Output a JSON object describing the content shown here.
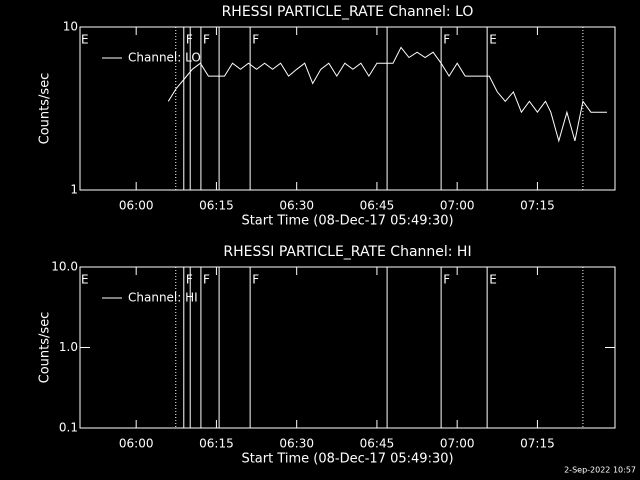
{
  "chart_data": [
    {
      "type": "line",
      "title": "RHESSI PARTICLE_RATE Channel: LO",
      "xlabel": "Start Time (08-Dec-17 05:49:30)",
      "ylabel": "Counts/sec",
      "xlim": [
        0,
        100
      ],
      "xticks": [
        {
          "value": 10.5,
          "label": "06:00"
        },
        {
          "value": 25.5,
          "label": "06:15"
        },
        {
          "value": 40.5,
          "label": "06:30"
        },
        {
          "value": 55.5,
          "label": "06:45"
        },
        {
          "value": 70.5,
          "label": "07:00"
        },
        {
          "value": 85.5,
          "label": "07:15"
        }
      ],
      "ylim": [
        1,
        10
      ],
      "yticks": [
        1,
        10
      ],
      "log_y": true,
      "legend": "upper left",
      "x": [
        16.5,
        18,
        19.5,
        21,
        22.5,
        24,
        25.5,
        27,
        28.5,
        30,
        31.5,
        33,
        34.5,
        36,
        37.5,
        39,
        40.5,
        42,
        43.5,
        45,
        46.5,
        48,
        49.5,
        51,
        52.5,
        54,
        55.5,
        57,
        58.5,
        60,
        61.5,
        63,
        64.5,
        66,
        67.5,
        69,
        70.5,
        72,
        73.5,
        75,
        76.5,
        78,
        79.5,
        81,
        82.5,
        84,
        85.5,
        87,
        88,
        89.5,
        91,
        92.5,
        94,
        95.5,
        97,
        98.5
      ],
      "series": [
        {
          "name": "Channel: LO",
          "color": "#ffffff",
          "values": [
            3.5,
            4.2,
            4.8,
            5.5,
            6,
            5,
            5,
            5,
            6,
            5.5,
            6,
            5.5,
            6,
            5.5,
            6,
            5,
            5.5,
            6,
            4.5,
            5.5,
            6,
            5,
            6,
            5.5,
            6,
            5,
            6,
            6,
            6,
            7.5,
            6.5,
            7,
            6.5,
            7,
            6,
            5,
            6,
            5,
            5,
            5,
            5,
            4,
            3.5,
            4,
            3,
            3.5,
            3,
            3.5,
            3,
            2,
            3,
            2,
            3.5,
            3,
            3,
            3
          ]
        }
      ],
      "vlines": [
        {
          "x": 17.9,
          "style": "dotted"
        },
        {
          "x": 19.4,
          "style": "solid"
        },
        {
          "x": 20.6,
          "style": "solid"
        },
        {
          "x": 22.6,
          "style": "solid"
        },
        {
          "x": 26.0,
          "style": "solid"
        },
        {
          "x": 31.8,
          "style": "solid"
        },
        {
          "x": 57.4,
          "style": "solid"
        },
        {
          "x": 67.5,
          "style": "solid"
        },
        {
          "x": 76.1,
          "style": "solid"
        },
        {
          "x": 94.0,
          "style": "dotted"
        }
      ],
      "flags": [
        {
          "x": 0,
          "label": "E"
        },
        {
          "x": 19.6,
          "label": "F"
        },
        {
          "x": 22.8,
          "label": "F"
        },
        {
          "x": 32.0,
          "label": "F"
        },
        {
          "x": 67.7,
          "label": "F"
        },
        {
          "x": 76.3,
          "label": "E"
        }
      ]
    },
    {
      "type": "line",
      "title": "RHESSI PARTICLE_RATE Channel: HI",
      "xlabel": "Start Time (08-Dec-17 05:49:30)",
      "ylabel": "Counts/sec",
      "xlim": [
        0,
        100
      ],
      "xticks": [
        {
          "value": 10.5,
          "label": "06:00"
        },
        {
          "value": 25.5,
          "label": "06:15"
        },
        {
          "value": 40.5,
          "label": "06:30"
        },
        {
          "value": 55.5,
          "label": "06:45"
        },
        {
          "value": 70.5,
          "label": "07:00"
        },
        {
          "value": 85.5,
          "label": "07:15"
        }
      ],
      "ylim": [
        0.1,
        10
      ],
      "yticks": [
        0.1,
        {
          "value": 1,
          "label": "1.0"
        },
        {
          "value": 10,
          "label": "10.0"
        }
      ],
      "log_y": true,
      "legend": "upper left",
      "x": [],
      "series": [
        {
          "name": "Channel: HI",
          "color": "#ffffff",
          "values": []
        }
      ],
      "vlines": [
        {
          "x": 17.9,
          "style": "dotted"
        },
        {
          "x": 19.4,
          "style": "solid"
        },
        {
          "x": 20.6,
          "style": "solid"
        },
        {
          "x": 22.6,
          "style": "solid"
        },
        {
          "x": 26.0,
          "style": "solid"
        },
        {
          "x": 31.8,
          "style": "solid"
        },
        {
          "x": 57.4,
          "style": "solid"
        },
        {
          "x": 67.5,
          "style": "solid"
        },
        {
          "x": 76.1,
          "style": "solid"
        },
        {
          "x": 94.0,
          "style": "dotted"
        }
      ],
      "flags": [
        {
          "x": 0,
          "label": "E"
        },
        {
          "x": 19.6,
          "label": "F"
        },
        {
          "x": 22.8,
          "label": "F"
        },
        {
          "x": 32.0,
          "label": "F"
        },
        {
          "x": 67.7,
          "label": "F"
        },
        {
          "x": 76.3,
          "label": "E"
        }
      ]
    }
  ],
  "footer": "2-Sep-2022 10:57"
}
